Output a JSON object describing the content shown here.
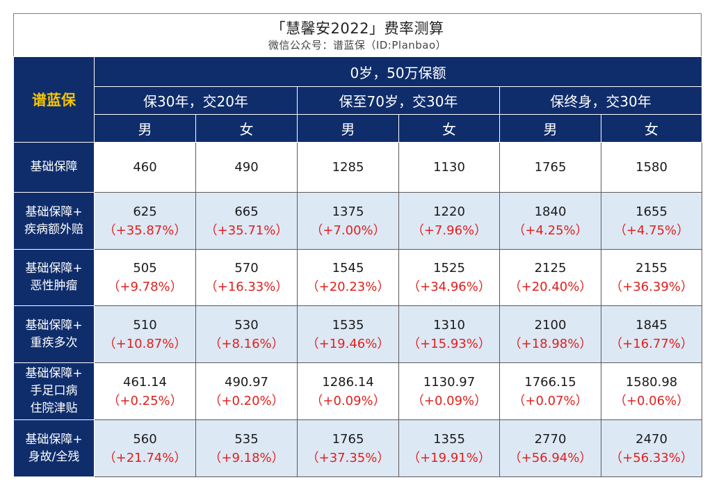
{
  "title": "「慧馨安2022」费率测算",
  "subtitle": "微信公众号：谱蓝保（ID:Planbao）",
  "brand": "谱蓝保",
  "accent_colors": {
    "header_bg": "#0f2d6b",
    "brand_text": "#f5c400",
    "pct_text": "#e0201b",
    "alt_row_bg": "#dde8f5"
  },
  "top_header": "0岁，50万保额",
  "plans": [
    "保30年，交20年",
    "保至70岁，交30年",
    "保终身，交30年"
  ],
  "genders": [
    "男",
    "女",
    "男",
    "女",
    "男",
    "女"
  ],
  "rows": [
    {
      "label": [
        "基础保障"
      ],
      "values": [
        "460",
        "490",
        "1285",
        "1130",
        "1765",
        "1580"
      ],
      "pcts": [
        "",
        "",
        "",
        "",
        "",
        ""
      ]
    },
    {
      "label": [
        "基础保障+",
        "疾病额外赔"
      ],
      "values": [
        "625",
        "665",
        "1375",
        "1220",
        "1840",
        "1655"
      ],
      "pcts": [
        "（+35.87%）",
        "（+35.71%）",
        "（+7.00%）",
        "（+7.96%）",
        "（+4.25%）",
        "（+4.75%）"
      ]
    },
    {
      "label": [
        "基础保障+",
        "恶性肿瘤"
      ],
      "values": [
        "505",
        "570",
        "1545",
        "1525",
        "2125",
        "2155"
      ],
      "pcts": [
        "（+9.78%）",
        "（+16.33%）",
        "（+20.23%）",
        "（+34.96%）",
        "（+20.40%）",
        "（+36.39%）"
      ]
    },
    {
      "label": [
        "基础保障+",
        "重疾多次"
      ],
      "values": [
        "510",
        "530",
        "1535",
        "1310",
        "2100",
        "1845"
      ],
      "pcts": [
        "（+10.87%）",
        "（+8.16%）",
        "（+19.46%）",
        "（+15.93%）",
        "（+18.98%）",
        "（+16.77%）"
      ]
    },
    {
      "label": [
        "基础保障+",
        "手足口病",
        "住院津贴"
      ],
      "values": [
        "461.14",
        "490.97",
        "1286.14",
        "1130.97",
        "1766.15",
        "1580.98"
      ],
      "pcts": [
        "（+0.25%）",
        "（+0.20%）",
        "（+0.09%）",
        "（+0.09%）",
        "（+0.07%）",
        "（+0.06%）"
      ]
    },
    {
      "label": [
        "基础保障+",
        "身故/全残"
      ],
      "values": [
        "560",
        "535",
        "1765",
        "1355",
        "2770",
        "2470"
      ],
      "pcts": [
        "（+21.74%）",
        "（+9.18%）",
        "（+37.35%）",
        "（+19.91%）",
        "（+56.94%）",
        "（+56.33%）"
      ]
    }
  ]
}
